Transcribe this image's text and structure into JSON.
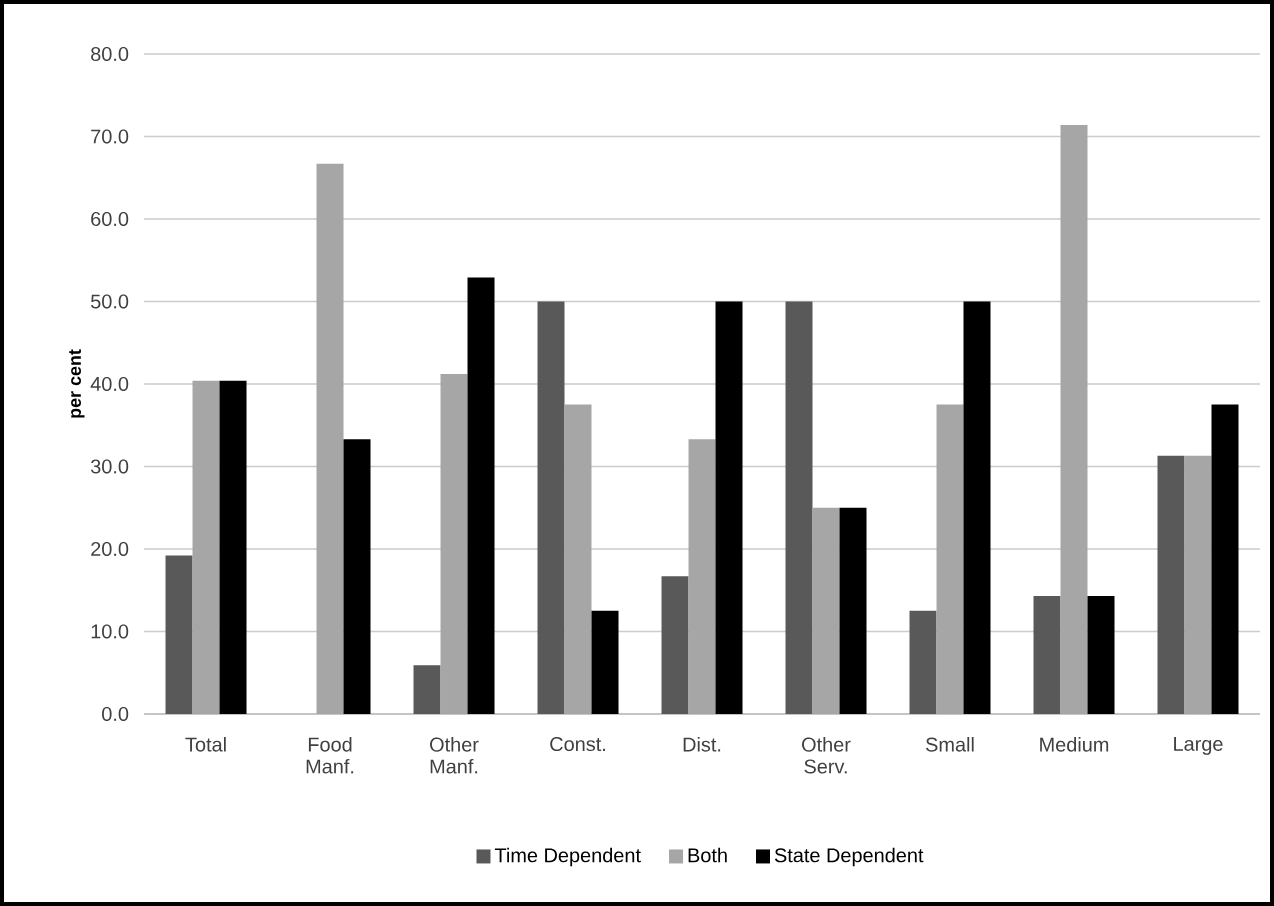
{
  "chart_data": {
    "type": "bar",
    "ylabel": "per cent",
    "categories": [
      "Total",
      "Food Manf.",
      "Other Manf.",
      "Const.",
      "Dist.",
      "Other Serv.",
      "Small",
      "Medium",
      "Large"
    ],
    "series": [
      {
        "name": "Time Dependent",
        "color": "#595959",
        "values": [
          19.2,
          0,
          5.9,
          50.0,
          16.7,
          50.0,
          12.5,
          14.3,
          31.3
        ]
      },
      {
        "name": "Both",
        "color": "#a6a6a6",
        "values": [
          40.4,
          66.7,
          41.2,
          37.5,
          33.3,
          25.0,
          37.5,
          71.4,
          31.3
        ]
      },
      {
        "name": "State Dependent",
        "color": "#000000",
        "values": [
          40.4,
          33.3,
          52.9,
          12.5,
          50.0,
          25.0,
          50.0,
          14.3,
          37.5
        ]
      }
    ],
    "ylim": [
      0,
      80
    ],
    "yticks": [
      {
        "value": 0,
        "label": "0.0"
      },
      {
        "value": 10,
        "label": "10.0"
      },
      {
        "value": 20,
        "label": "20.0"
      },
      {
        "value": 30,
        "label": "30.0"
      },
      {
        "value": 40,
        "label": "40.0"
      },
      {
        "value": 50,
        "label": "50.0"
      },
      {
        "value": 60,
        "label": "60.0"
      },
      {
        "value": 70,
        "label": "70.0"
      },
      {
        "value": 80,
        "label": "80.0"
      }
    ],
    "grid": "y",
    "legend": "bottom"
  }
}
